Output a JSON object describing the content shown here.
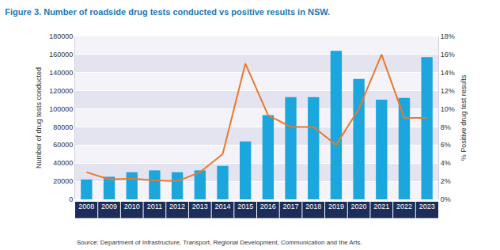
{
  "chart_data": {
    "type": "bar",
    "title": "Figure 3. Number of roadside drug tests conducted vs positive results in NSW.",
    "y_label": "Number of drug tests conducted",
    "y2_label": "% Positive drug test results",
    "annotations": [
      "Source: Department of Infrastructure, Transport, Regional Development, Communication and the Arts."
    ],
    "categories": [
      "2008",
      "2009",
      "2010",
      "2011",
      "2012",
      "2013",
      "2014",
      "2015",
      "2016",
      "2017",
      "2018",
      "2019",
      "2020",
      "2021",
      "2022",
      "2023"
    ],
    "series": [
      {
        "type": "bar",
        "color": "#1ba6de",
        "axis": "y",
        "values": [
          22000,
          25000,
          30000,
          32000,
          30000,
          32000,
          37000,
          64000,
          93000,
          113000,
          113000,
          164000,
          133000,
          110000,
          112000,
          157000
        ]
      },
      {
        "type": "line",
        "color": "#e8792b",
        "axis": "y2",
        "line_style": "solid",
        "values": [
          3,
          2.2,
          2.3,
          2.1,
          2,
          3,
          5,
          15,
          9.3,
          8,
          8,
          6,
          10,
          16,
          9,
          9
        ]
      }
    ],
    "ylim": [
      0,
      180000
    ],
    "yticks": [
      0,
      20000,
      40000,
      60000,
      80000,
      100000,
      120000,
      140000,
      160000,
      180000
    ],
    "y2lim": [
      0,
      18
    ],
    "y2ticks": [
      {
        "value": 0,
        "label": "0%"
      },
      {
        "value": 2,
        "label": "2%"
      },
      {
        "value": 4,
        "label": "4%"
      },
      {
        "value": 6,
        "label": "6%"
      },
      {
        "value": 8,
        "label": "8%"
      },
      {
        "value": 10,
        "label": "10%"
      },
      {
        "value": 12,
        "label": "12%"
      },
      {
        "value": 14,
        "label": "14%"
      },
      {
        "value": 16,
        "label": "16%"
      },
      {
        "value": 18,
        "label": "18%"
      }
    ],
    "grid": true
  }
}
